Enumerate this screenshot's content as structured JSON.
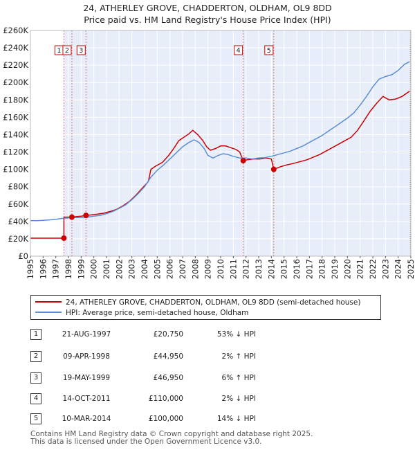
{
  "chart_data": {
    "type": "line",
    "title": "24, ATHERLEY GROVE, CHADDERTON, OLDHAM, OL9 8DD",
    "subtitle": "Price paid vs. HM Land Registry's House Price Index (HPI)",
    "xlim": [
      1995,
      2025
    ],
    "ylim": [
      0,
      260000
    ],
    "y_ticks": [
      {
        "value": 0,
        "label": "£0"
      },
      {
        "value": 20000,
        "label": "£20K"
      },
      {
        "value": 40000,
        "label": "£40K"
      },
      {
        "value": 60000,
        "label": "£60K"
      },
      {
        "value": 80000,
        "label": "£80K"
      },
      {
        "value": 100000,
        "label": "£100K"
      },
      {
        "value": 120000,
        "label": "£120K"
      },
      {
        "value": 140000,
        "label": "£140K"
      },
      {
        "value": 160000,
        "label": "£160K"
      },
      {
        "value": 180000,
        "label": "£180K"
      },
      {
        "value": 200000,
        "label": "£200K"
      },
      {
        "value": 220000,
        "label": "£220K"
      },
      {
        "value": 240000,
        "label": "£240K"
      },
      {
        "value": 260000,
        "label": "£260K"
      }
    ],
    "x_ticks": [
      "1995",
      "1996",
      "1997",
      "1998",
      "1999",
      "2000",
      "2001",
      "2002",
      "2003",
      "2004",
      "2005",
      "2006",
      "2007",
      "2008",
      "2009",
      "2010",
      "2011",
      "2012",
      "2013",
      "2014",
      "2015",
      "2016",
      "2017",
      "2018",
      "2019",
      "2020",
      "2021",
      "2022",
      "2023",
      "2024",
      "2025"
    ],
    "series": [
      {
        "name": "24, ATHERLEY GROVE, CHADDERTON, OLDHAM, OL9 8DD (semi-detached house)",
        "color": "#cc0000",
        "points": [
          [
            1995.0,
            20750
          ],
          [
            1996.0,
            20750
          ],
          [
            1997.0,
            20750
          ],
          [
            1997.64,
            20750
          ],
          [
            1997.64,
            44950
          ],
          [
            1998.27,
            44950
          ],
          [
            1998.6,
            45500
          ],
          [
            1999.0,
            46000
          ],
          [
            1999.38,
            46950
          ],
          [
            1999.8,
            47500
          ],
          [
            2000.3,
            48500
          ],
          [
            2000.8,
            49500
          ],
          [
            2001.3,
            51500
          ],
          [
            2001.8,
            54000
          ],
          [
            2002.3,
            58000
          ],
          [
            2002.8,
            63000
          ],
          [
            2003.3,
            70000
          ],
          [
            2003.8,
            78000
          ],
          [
            2004.3,
            86000
          ],
          [
            2004.5,
            100000
          ],
          [
            2004.9,
            104000
          ],
          [
            2005.4,
            108000
          ],
          [
            2005.9,
            116000
          ],
          [
            2006.3,
            124000
          ],
          [
            2006.7,
            133000
          ],
          [
            2007.1,
            137000
          ],
          [
            2007.5,
            141000
          ],
          [
            2007.8,
            145000
          ],
          [
            2008.2,
            140000
          ],
          [
            2008.6,
            133000
          ],
          [
            2008.9,
            126000
          ],
          [
            2009.2,
            122000
          ],
          [
            2009.6,
            124000
          ],
          [
            2010.0,
            127000
          ],
          [
            2010.4,
            127000
          ],
          [
            2010.8,
            125000
          ],
          [
            2011.2,
            123000
          ],
          [
            2011.5,
            120000
          ],
          [
            2011.78,
            110000
          ],
          [
            2012.1,
            111000
          ],
          [
            2012.6,
            112000
          ],
          [
            2013.1,
            112000
          ],
          [
            2013.6,
            113000
          ],
          [
            2014.0,
            112000
          ],
          [
            2014.19,
            100000
          ],
          [
            2014.7,
            103000
          ],
          [
            2015.2,
            105000
          ],
          [
            2015.8,
            107000
          ],
          [
            2016.3,
            109000
          ],
          [
            2016.8,
            111000
          ],
          [
            2017.3,
            114000
          ],
          [
            2017.8,
            117000
          ],
          [
            2018.3,
            121000
          ],
          [
            2018.8,
            125000
          ],
          [
            2019.3,
            129000
          ],
          [
            2019.8,
            133000
          ],
          [
            2020.3,
            137000
          ],
          [
            2020.8,
            145000
          ],
          [
            2021.3,
            156000
          ],
          [
            2021.8,
            167000
          ],
          [
            2022.3,
            176000
          ],
          [
            2022.8,
            184000
          ],
          [
            2023.3,
            180000
          ],
          [
            2023.8,
            181000
          ],
          [
            2024.3,
            184000
          ],
          [
            2024.9,
            190000
          ]
        ]
      },
      {
        "name": "HPI: Average price, semi-detached house, Oldham",
        "color": "#5b8ed6",
        "points": [
          [
            1995.0,
            41000
          ],
          [
            1995.5,
            40800
          ],
          [
            1996.0,
            41200
          ],
          [
            1996.5,
            41800
          ],
          [
            1997.0,
            42500
          ],
          [
            1997.5,
            43500
          ],
          [
            1998.0,
            44000
          ],
          [
            1998.5,
            44500
          ],
          [
            1999.0,
            44500
          ],
          [
            1999.5,
            45000
          ],
          [
            2000.0,
            46000
          ],
          [
            2000.5,
            47000
          ],
          [
            2001.0,
            49000
          ],
          [
            2001.5,
            51500
          ],
          [
            2002.0,
            55000
          ],
          [
            2002.5,
            59000
          ],
          [
            2003.0,
            65000
          ],
          [
            2003.5,
            72000
          ],
          [
            2004.0,
            80000
          ],
          [
            2004.5,
            91000
          ],
          [
            2005.0,
            99000
          ],
          [
            2005.5,
            105000
          ],
          [
            2006.0,
            112000
          ],
          [
            2006.5,
            119000
          ],
          [
            2007.0,
            126000
          ],
          [
            2007.5,
            131000
          ],
          [
            2007.9,
            134000
          ],
          [
            2008.3,
            131000
          ],
          [
            2008.7,
            124000
          ],
          [
            2009.0,
            116000
          ],
          [
            2009.4,
            113000
          ],
          [
            2009.8,
            116000
          ],
          [
            2010.2,
            118000
          ],
          [
            2010.6,
            117000
          ],
          [
            2011.0,
            115000
          ],
          [
            2011.5,
            113000
          ],
          [
            2012.0,
            113000
          ],
          [
            2012.5,
            112000
          ],
          [
            2013.0,
            113000
          ],
          [
            2013.5,
            113500
          ],
          [
            2014.0,
            115000
          ],
          [
            2014.5,
            117000
          ],
          [
            2015.0,
            119000
          ],
          [
            2015.5,
            121000
          ],
          [
            2016.0,
            124000
          ],
          [
            2016.5,
            127000
          ],
          [
            2017.0,
            131000
          ],
          [
            2017.5,
            135000
          ],
          [
            2018.0,
            139000
          ],
          [
            2018.5,
            144000
          ],
          [
            2019.0,
            149000
          ],
          [
            2019.5,
            154000
          ],
          [
            2020.0,
            159000
          ],
          [
            2020.5,
            165000
          ],
          [
            2021.0,
            174000
          ],
          [
            2021.5,
            184000
          ],
          [
            2022.0,
            195000
          ],
          [
            2022.5,
            204000
          ],
          [
            2023.0,
            207000
          ],
          [
            2023.5,
            209000
          ],
          [
            2024.0,
            214000
          ],
          [
            2024.5,
            221000
          ],
          [
            2024.9,
            224000
          ]
        ]
      }
    ],
    "transactions": [
      {
        "n": "1",
        "x": 1997.64,
        "date": "21-AUG-1997",
        "price": 20750,
        "price_label": "£20,750",
        "hpi": "53% ↓ HPI"
      },
      {
        "n": "2",
        "x": 1998.27,
        "date": "09-APR-1998",
        "price": 44950,
        "price_label": "£44,950",
        "hpi": "2% ↑ HPI"
      },
      {
        "n": "3",
        "x": 1999.38,
        "date": "19-MAY-1999",
        "price": 46950,
        "price_label": "£46,950",
        "hpi": "6% ↑ HPI"
      },
      {
        "n": "4",
        "x": 2011.78,
        "date": "14-OCT-2011",
        "price": 110000,
        "price_label": "£110,000",
        "hpi": "2% ↓ HPI"
      },
      {
        "n": "5",
        "x": 2014.19,
        "date": "10-MAR-2014",
        "price": 100000,
        "price_label": "£100,000",
        "hpi": "14% ↓ HPI"
      }
    ],
    "legend_position": "below"
  },
  "colors": {
    "price_line": "#cc0000",
    "hpi_line": "#5b8ed6",
    "shade": "#e8eef9",
    "marker_border": "#cc0000"
  },
  "footer": {
    "line1": "Contains HM Land Registry data © Crown copyright and database right 2025.",
    "line2": "This data is licensed under the Open Government Licence v3.0."
  }
}
